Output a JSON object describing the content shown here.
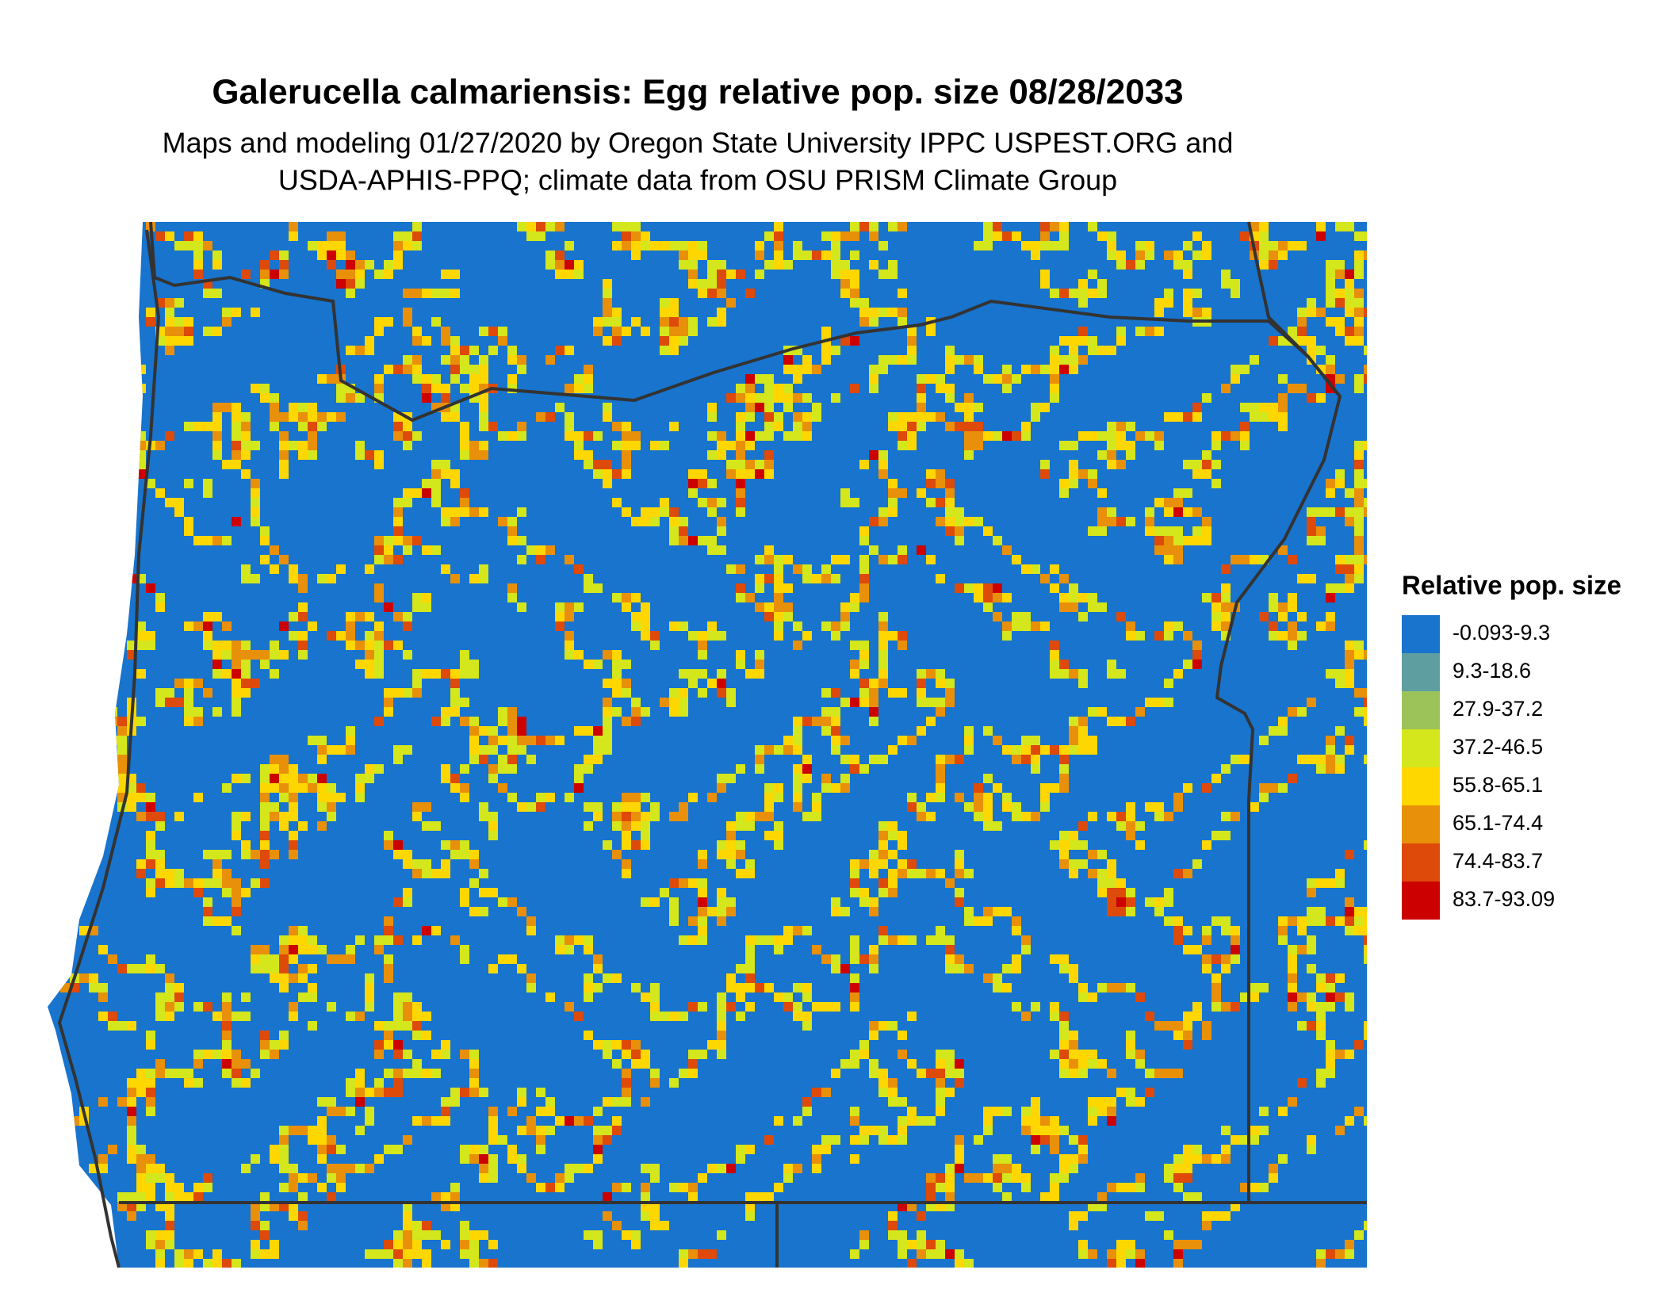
{
  "header": {
    "title": "Galerucella calmariensis: Egg relative pop. size 08/28/2033",
    "subtitle": [
      "Maps and modeling 01/27/2020 by Oregon State University IPPC USPEST.ORG and",
      "USDA-APHIS-PPQ; climate data from OSU PRISM Climate Group"
    ]
  },
  "legend": {
    "title": "Relative pop. size",
    "items": [
      {
        "label": "-0.093-9.3",
        "color": "#1874cd"
      },
      {
        "label": "9.3-18.6",
        "color": "#5f9ea0"
      },
      {
        "label": "27.9-37.2",
        "color": "#9bc35a"
      },
      {
        "label": "37.2-46.5",
        "color": "#d4e61c"
      },
      {
        "label": "55.8-65.1",
        "color": "#ffd700"
      },
      {
        "label": "65.1-74.4",
        "color": "#e8900a"
      },
      {
        "label": "74.4-83.7",
        "color": "#dd4a0a"
      },
      {
        "label": "83.7-93.09",
        "color": "#cd0000"
      }
    ]
  }
}
